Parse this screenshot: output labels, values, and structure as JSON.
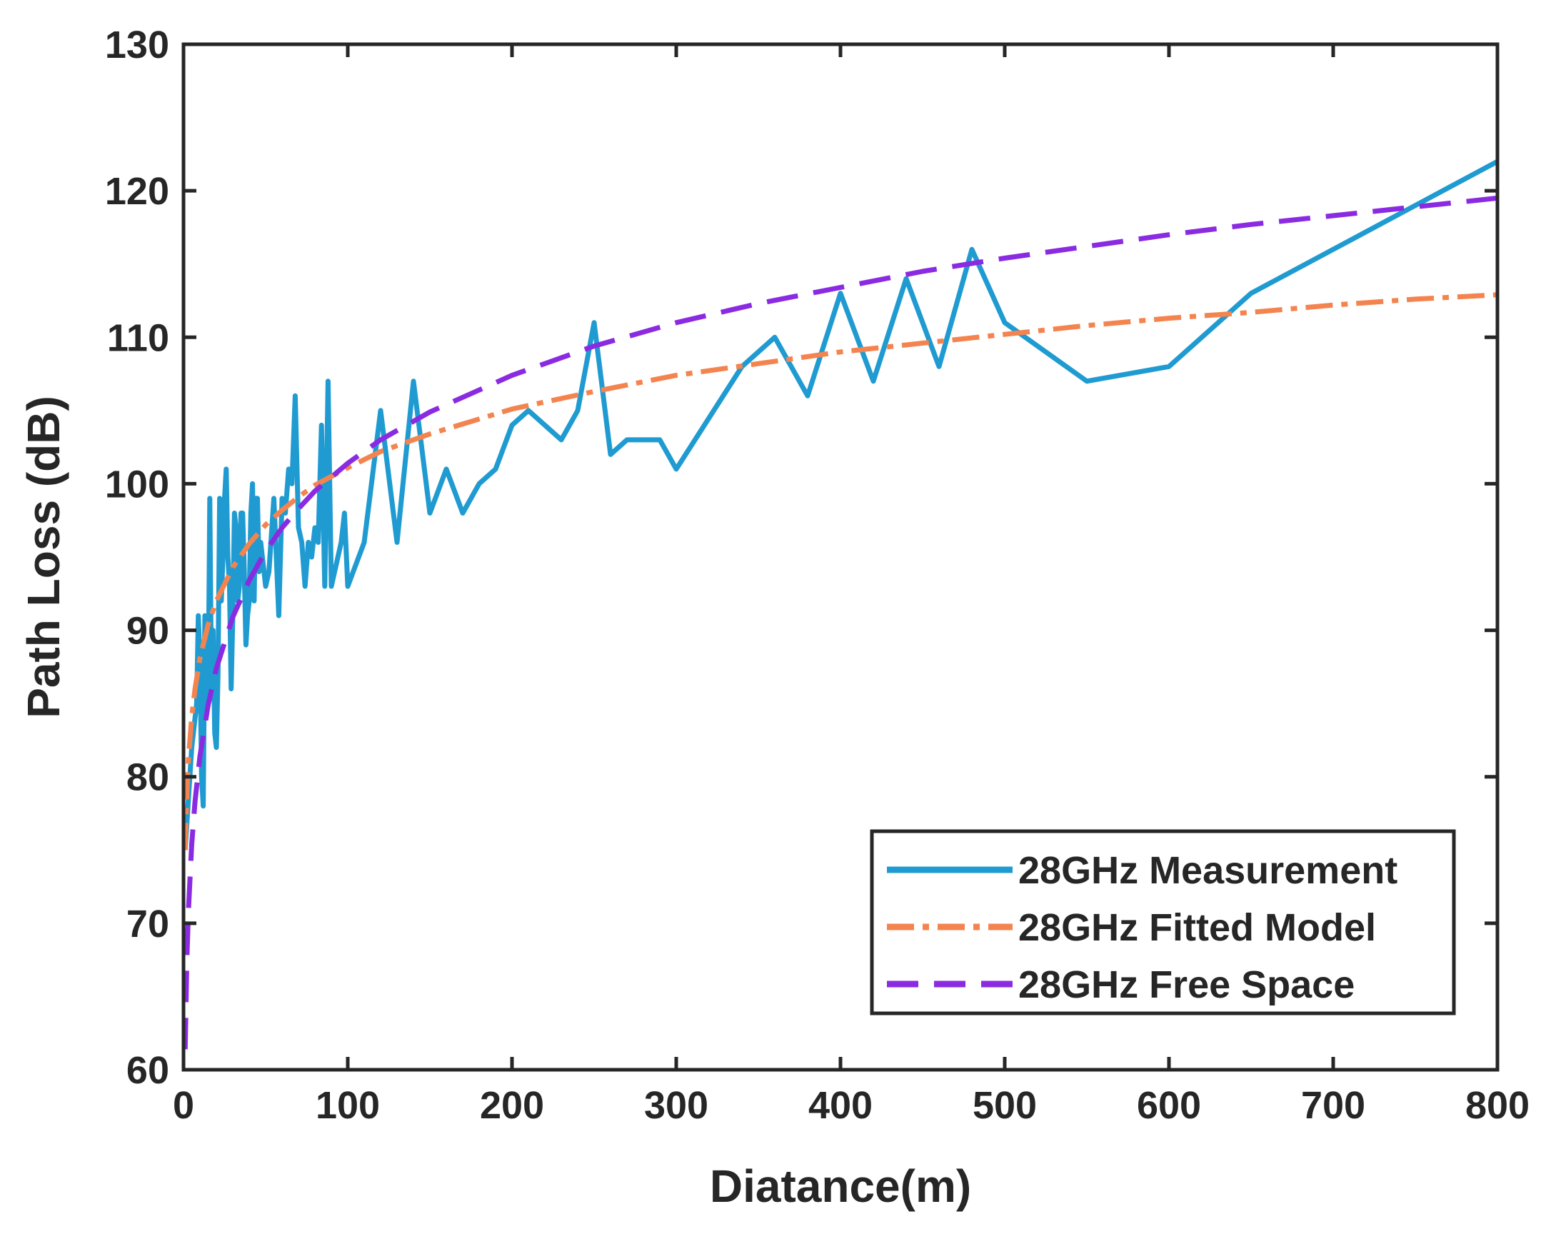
{
  "chart_data": {
    "type": "line",
    "title": "",
    "xlabel": "Diatance(m)",
    "ylabel": "Path Loss (dB)",
    "xlim": [
      0,
      800
    ],
    "ylim": [
      60,
      130
    ],
    "xticks": [
      0,
      100,
      200,
      300,
      400,
      500,
      600,
      700,
      800
    ],
    "yticks": [
      60,
      70,
      80,
      90,
      100,
      110,
      120,
      130
    ],
    "xtick_labels": [
      "0",
      "100",
      "200",
      "300",
      "400",
      "500",
      "600",
      "700",
      "800"
    ],
    "ytick_labels": [
      "60",
      "70",
      "80",
      "90",
      "100",
      "110",
      "120",
      "130"
    ],
    "grid": false,
    "legend_position": "bottom-right",
    "series": [
      {
        "name": "28GHz Measurement",
        "style": "solid",
        "color": "#1f9bd1",
        "x": [
          1,
          5,
          8,
          9,
          10,
          11,
          12,
          13,
          14,
          15,
          16,
          17,
          18,
          19,
          20,
          21,
          22,
          23,
          24,
          25,
          26,
          27,
          28,
          29,
          30,
          31,
          32,
          33,
          34,
          35,
          36,
          37,
          38,
          39,
          40,
          41,
          42,
          43,
          44,
          45,
          46,
          47,
          48,
          49,
          50,
          52,
          55,
          58,
          60,
          62,
          64,
          66,
          68,
          70,
          72,
          74,
          76,
          78,
          80,
          82,
          84,
          86,
          88,
          90,
          92,
          94,
          96,
          98,
          100,
          110,
          120,
          130,
          140,
          150,
          160,
          170,
          180,
          190,
          200,
          210,
          220,
          230,
          240,
          250,
          260,
          270,
          290,
          300,
          340,
          360,
          380,
          400,
          420,
          440,
          460,
          480,
          500,
          550,
          600,
          650,
          700,
          750,
          800
        ],
        "y": [
          75,
          82,
          85,
          91,
          88,
          80,
          78,
          91,
          89,
          85,
          99,
          86,
          90,
          83,
          82,
          87,
          99,
          92,
          95,
          99,
          101,
          95,
          93,
          86,
          91,
          98,
          97,
          92,
          93,
          98,
          98,
          94,
          89,
          91,
          92,
          98,
          100,
          92,
          99,
          99,
          94,
          96,
          95,
          94,
          93,
          94,
          99,
          91,
          99,
          98,
          101,
          100,
          106,
          97,
          96,
          93,
          96,
          95,
          97,
          96,
          104,
          93,
          107,
          93,
          94,
          95,
          96,
          98,
          93,
          96,
          105,
          96,
          107,
          98,
          101,
          98,
          100,
          101,
          104,
          105,
          104,
          103,
          105,
          111,
          102,
          103,
          103,
          101,
          108,
          110,
          106,
          113,
          107,
          114,
          108,
          116,
          111,
          107,
          108,
          113,
          116,
          119,
          122
        ]
      },
      {
        "name": "28GHz Fitted Model",
        "style": "dashdot",
        "color": "#f4844f",
        "formula": "PL(d) = 75 + 13.06*log10(d)",
        "x": [
          1,
          2,
          3,
          5,
          7,
          10,
          15,
          20,
          30,
          40,
          50,
          60,
          70,
          80,
          100,
          120,
          150,
          200,
          250,
          300,
          350,
          400,
          450,
          500,
          550,
          600,
          650,
          700,
          750,
          800
        ],
        "y": [
          75.0,
          78.9,
          81.2,
          84.1,
          86.0,
          88.1,
          90.4,
          92.0,
          94.3,
          95.9,
          97.2,
          98.2,
          99.1,
          99.9,
          101.1,
          102.2,
          103.4,
          105.1,
          106.3,
          107.4,
          108.2,
          109.0,
          109.6,
          110.2,
          110.8,
          111.3,
          111.7,
          112.2,
          112.6,
          112.9
        ]
      },
      {
        "name": "28GHz Free Space",
        "style": "dashed",
        "color": "#8a2be2",
        "formula": "PL(d) = 61.4 + 20*log10(d)",
        "x": [
          1,
          2,
          3,
          5,
          7,
          10,
          15,
          20,
          30,
          40,
          50,
          60,
          70,
          80,
          100,
          120,
          150,
          200,
          250,
          300,
          350,
          400,
          450,
          500,
          550,
          600,
          650,
          700,
          750,
          800
        ],
        "y": [
          61.4,
          67.4,
          70.9,
          75.4,
          78.3,
          81.4,
          84.9,
          87.4,
          90.9,
          93.4,
          95.4,
          97.0,
          98.3,
          99.5,
          101.4,
          103.0,
          104.9,
          107.4,
          109.4,
          111.0,
          112.3,
          113.4,
          114.5,
          115.4,
          116.2,
          117.0,
          117.7,
          118.3,
          118.9,
          119.5
        ]
      }
    ]
  }
}
